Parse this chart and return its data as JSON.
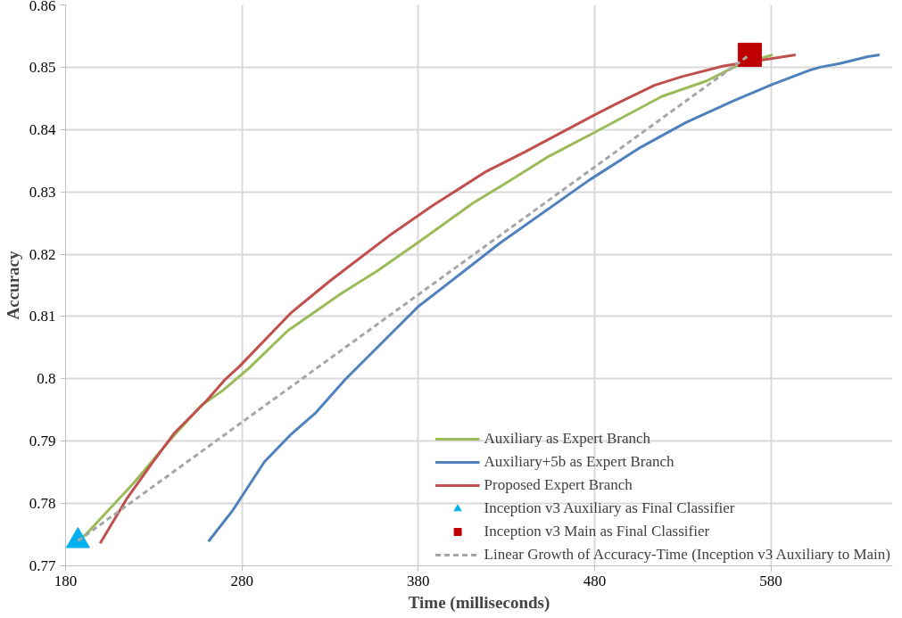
{
  "chart_data": {
    "type": "line",
    "xlabel": "Time (milliseconds)",
    "ylabel": "Accuracy",
    "xlim": [
      180,
      649
    ],
    "xticks": [
      180,
      280,
      380,
      480,
      580
    ],
    "ylim": [
      0.77,
      0.86
    ],
    "yticks": [
      0.77,
      0.78,
      0.79,
      {
        "value": 0.8,
        "label": "0.8"
      },
      0.81,
      0.82,
      0.83,
      0.84,
      0.85,
      0.86
    ],
    "grid": true,
    "legend": "bottom right",
    "line_style": "solid",
    "series": [
      {
        "name": "Auxiliary as Expert Branch",
        "color": "#9bbb59",
        "x": [
          187,
          191.4,
          218.7,
          238,
          256.8,
          269,
          284,
          305.9,
          336.4,
          356.6,
          380,
          411,
          430.8,
          454,
          479,
          518,
          543.5,
          561,
          581
        ],
        "values": [
          0.7741,
          0.775,
          0.7833,
          0.7898,
          0.7957,
          0.7981,
          0.8017,
          0.8077,
          0.8137,
          0.8173,
          0.8219,
          0.8282,
          0.8316,
          0.8357,
          0.8394,
          0.8453,
          0.8478,
          0.8503,
          0.852
        ]
      },
      {
        "name": "Auxiliary+5b as Expert Branch",
        "color": "#4f81bd",
        "x": [
          261,
          274.8,
          292.8,
          307.5,
          322,
          338.6,
          380,
          426.9,
          477,
          506.4,
          531.5,
          558.7,
          580.5,
          601.8,
          607.8,
          619,
          635,
          641.6
        ],
        "values": [
          0.7739,
          0.7789,
          0.7867,
          0.791,
          0.7946,
          0.7999,
          0.8116,
          0.8219,
          0.8319,
          0.8372,
          0.8411,
          0.8446,
          0.8472,
          0.8495,
          0.85,
          0.8506,
          0.8517,
          0.852
        ]
      },
      {
        "name": "Proposed Expert Branch",
        "color": "#c0504d",
        "x": [
          199.6,
          215,
          229.6,
          242,
          260,
          270.5,
          278.6,
          307.5,
          329,
          340,
          363.7,
          387.6,
          418.7,
          440.5,
          479,
          492.8,
          514,
          529.6,
          553,
          594
        ],
        "values": [
          0.7736,
          0.7809,
          0.7867,
          0.7914,
          0.7965,
          0.7999,
          0.802,
          0.8105,
          0.8155,
          0.8179,
          0.823,
          0.8277,
          0.8333,
          0.8364,
          0.8422,
          0.8442,
          0.8471,
          0.8485,
          0.8502,
          0.852
        ]
      },
      {
        "name": "Inception v3 Auxiliary as Final Classifier",
        "type": "scatter",
        "marker": "triangle",
        "color": "#00b0f0",
        "x": [
          187
        ],
        "values": [
          0.774
        ]
      },
      {
        "name": "Inception v3 Main as Final Classifier",
        "type": "scatter",
        "marker": "square",
        "color": "#c00000",
        "x": [
          568
        ],
        "values": [
          0.852
        ]
      },
      {
        "name": "Linear Growth of Accuracy-Time (Inception v3 Auxiliary to Main)",
        "color": "#a6a6a6",
        "line_style": "dashed",
        "x": [
          187,
          568
        ],
        "values": [
          0.774,
          0.852
        ]
      }
    ]
  }
}
